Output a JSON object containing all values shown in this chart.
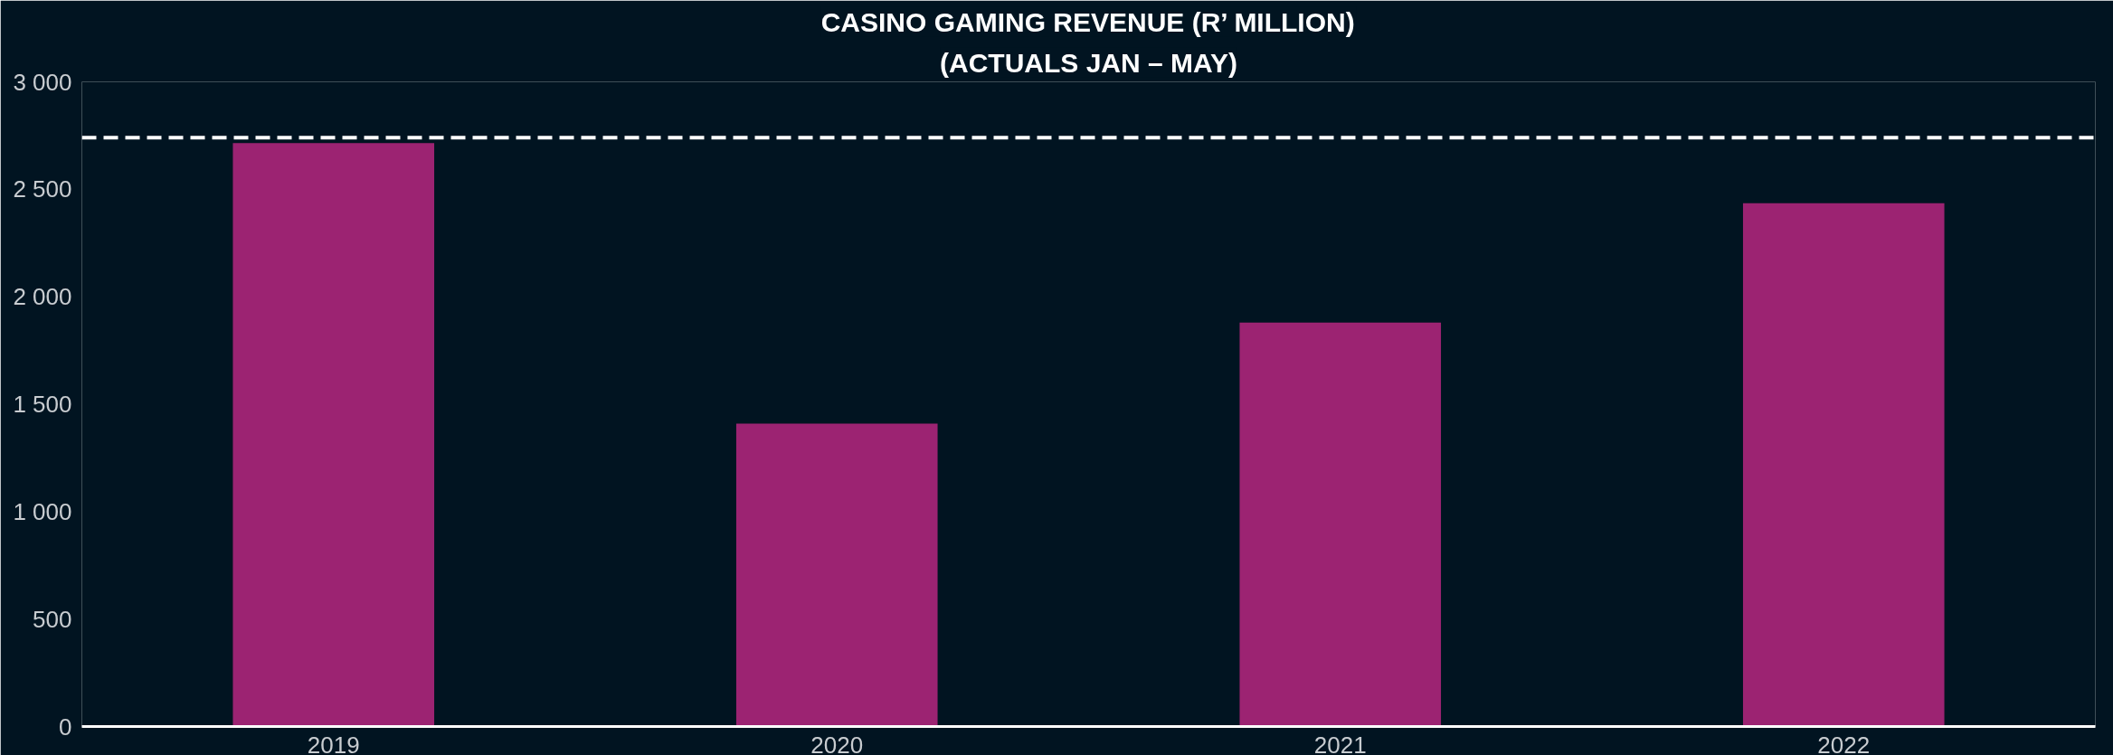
{
  "chart_data": {
    "type": "bar",
    "title": "CASINO GAMING REVENUE (R’ MILLION)",
    "subtitle": "(ACTUALS JAN – MAY)",
    "categories": [
      "2019",
      "2020",
      "2021",
      "2022"
    ],
    "series": [
      {
        "color": "#9c2372",
        "values": [
          2715,
          1410,
          1880,
          2435
        ]
      }
    ],
    "ylim": [
      0,
      3000
    ],
    "yticks": [
      0,
      {
        "value": 500,
        "label": "500"
      },
      {
        "value": 1000,
        "label": "1 000"
      },
      {
        "value": 1500,
        "label": "1 500"
      },
      {
        "value": 2000,
        "label": "2 000"
      },
      {
        "value": 2500,
        "label": "2 500"
      },
      {
        "value": 3000,
        "label": "3 000"
      }
    ],
    "ref_lines": [
      {
        "axis": "y",
        "value": 2740,
        "color": "#ffffff",
        "line_style": "dashed"
      }
    ],
    "grid": false
  }
}
